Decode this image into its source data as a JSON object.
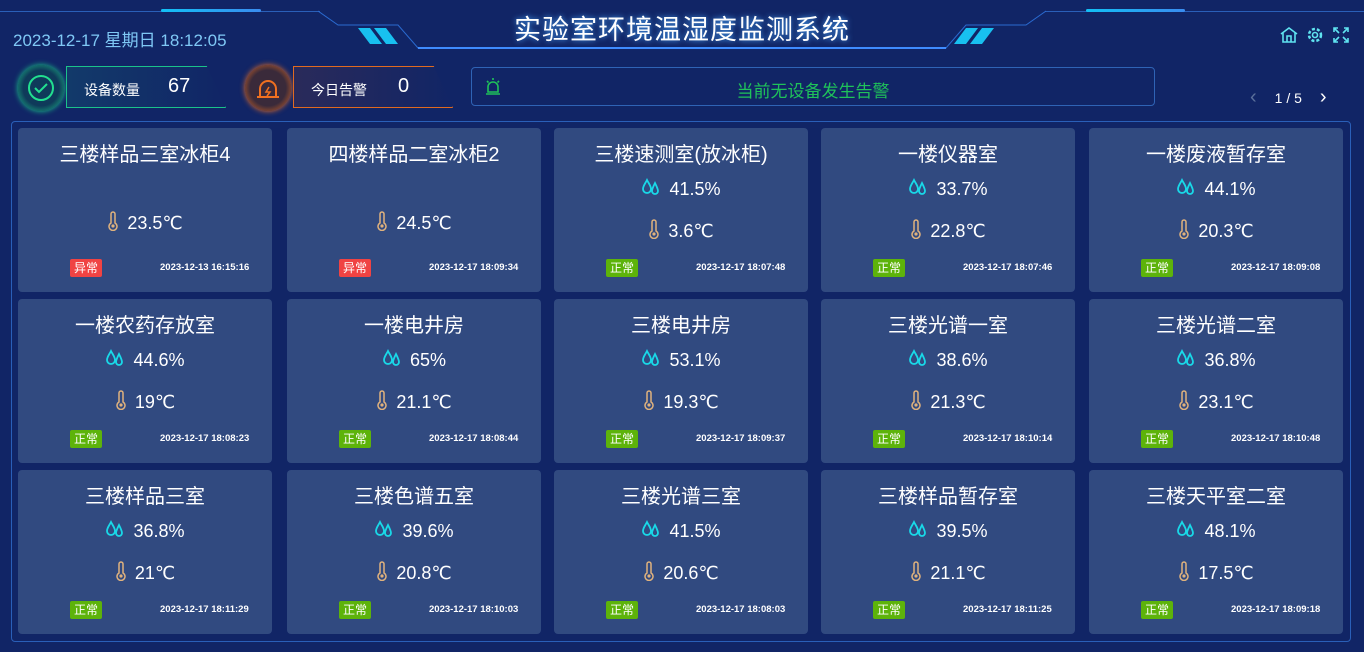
{
  "header": {
    "title": "实验室环境温湿度监测系统",
    "datetime": "2023-12-17 星期日 18:12:05",
    "icons": [
      "home-icon",
      "gear-icon",
      "fullscreen-icon"
    ]
  },
  "stats": {
    "device_count_label": "设备数量",
    "device_count": "67",
    "alarm_today_label": "今日告警",
    "alarm_today": "0"
  },
  "alarm_banner": {
    "text": "当前无设备发生告警",
    "color": "#1fc25a"
  },
  "pager": {
    "text": "1 / 5"
  },
  "colors": {
    "normal": "#5db30a",
    "abnormal": "#f04343",
    "humidity_icon": "#19d9e8",
    "temp_icon": "#e0b27d"
  },
  "devices": [
    {
      "name": "三楼样品三室冰柜4",
      "humidity": null,
      "temperature": "23.5℃",
      "status": "异常",
      "time": "2023-12-13 16:15:16"
    },
    {
      "name": "四楼样品二室冰柜2",
      "humidity": null,
      "temperature": "24.5℃",
      "status": "异常",
      "time": "2023-12-17 18:09:34"
    },
    {
      "name": "三楼速测室(放冰柜)",
      "humidity": "41.5%",
      "temperature": "3.6℃",
      "status": "正常",
      "time": "2023-12-17 18:07:48"
    },
    {
      "name": "一楼仪器室",
      "humidity": "33.7%",
      "temperature": "22.8℃",
      "status": "正常",
      "time": "2023-12-17 18:07:46"
    },
    {
      "name": "一楼废液暂存室",
      "humidity": "44.1%",
      "temperature": "20.3℃",
      "status": "正常",
      "time": "2023-12-17 18:09:08"
    },
    {
      "name": "一楼农药存放室",
      "humidity": "44.6%",
      "temperature": "19℃",
      "status": "正常",
      "time": "2023-12-17 18:08:23"
    },
    {
      "name": "一楼电井房",
      "humidity": "65%",
      "temperature": "21.1℃",
      "status": "正常",
      "time": "2023-12-17 18:08:44"
    },
    {
      "name": "三楼电井房",
      "humidity": "53.1%",
      "temperature": "19.3℃",
      "status": "正常",
      "time": "2023-12-17 18:09:37"
    },
    {
      "name": "三楼光谱一室",
      "humidity": "38.6%",
      "temperature": "21.3℃",
      "status": "正常",
      "time": "2023-12-17 18:10:14"
    },
    {
      "name": "三楼光谱二室",
      "humidity": "36.8%",
      "temperature": "23.1℃",
      "status": "正常",
      "time": "2023-12-17 18:10:48"
    },
    {
      "name": "三楼样品三室",
      "humidity": "36.8%",
      "temperature": "21℃",
      "status": "正常",
      "time": "2023-12-17 18:11:29"
    },
    {
      "name": "三楼色谱五室",
      "humidity": "39.6%",
      "temperature": "20.8℃",
      "status": "正常",
      "time": "2023-12-17 18:10:03"
    },
    {
      "name": "三楼光谱三室",
      "humidity": "41.5%",
      "temperature": "20.6℃",
      "status": "正常",
      "time": "2023-12-17 18:08:03"
    },
    {
      "name": "三楼样品暂存室",
      "humidity": "39.5%",
      "temperature": "21.1℃",
      "status": "正常",
      "time": "2023-12-17 18:11:25"
    },
    {
      "name": "三楼天平室二室",
      "humidity": "48.1%",
      "temperature": "17.5℃",
      "status": "正常",
      "time": "2023-12-17 18:09:18"
    }
  ]
}
